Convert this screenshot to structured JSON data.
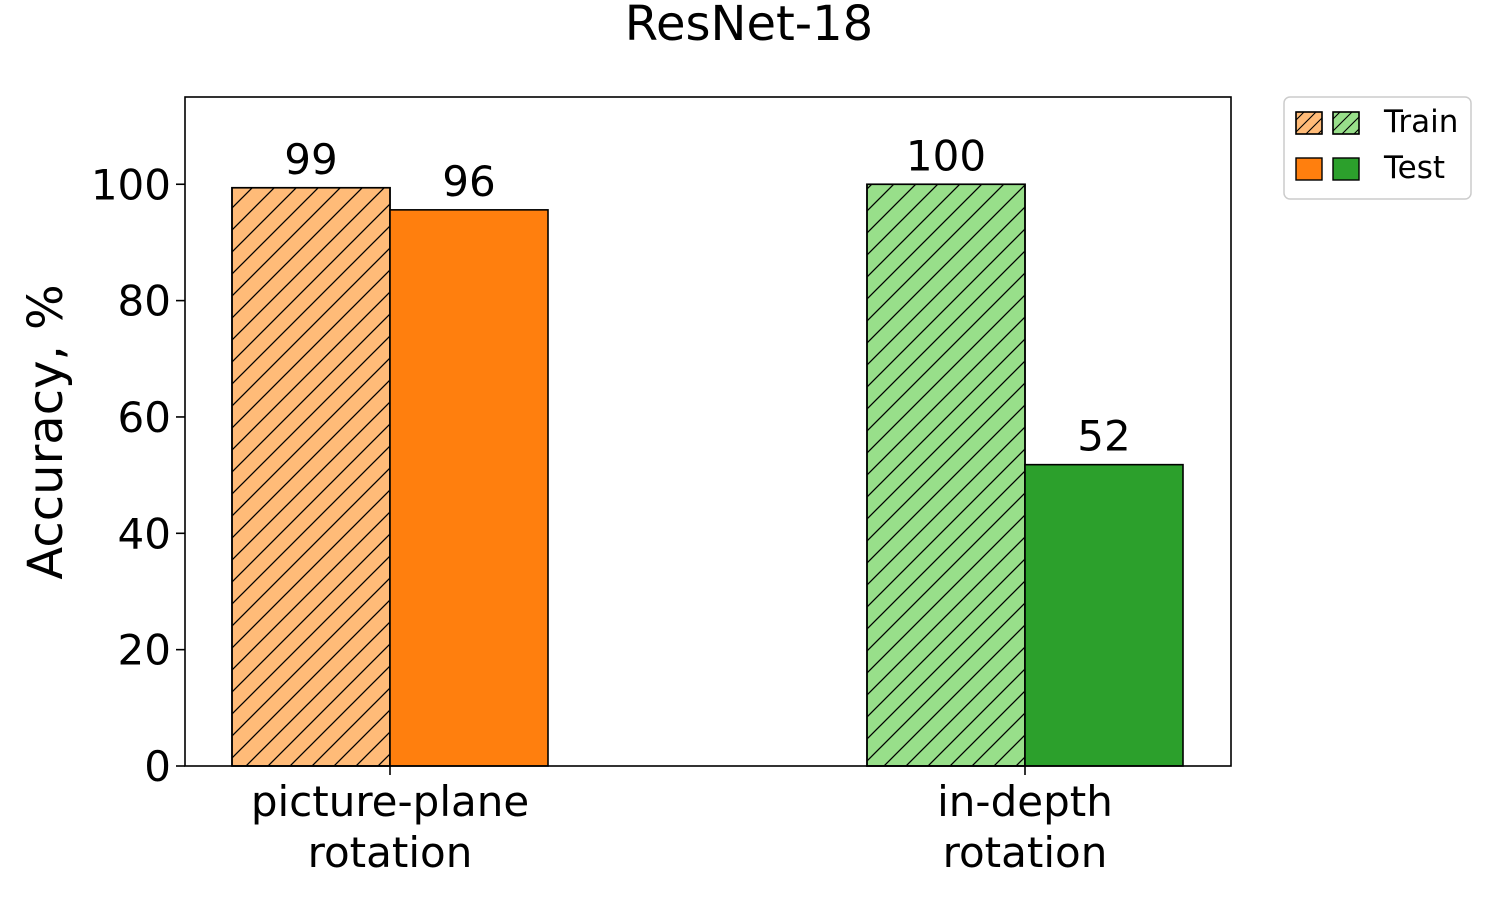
{
  "chart_data": {
    "type": "bar",
    "title": "ResNet-18",
    "xlabel": "",
    "ylabel": "Accuracy, %",
    "ylim": [
      0,
      115
    ],
    "yticks": [
      0,
      20,
      40,
      60,
      80,
      100
    ],
    "categories": [
      {
        "lines": [
          "picture-plane",
          "rotation"
        ]
      },
      {
        "lines": [
          "in-depth",
          "rotation"
        ]
      }
    ],
    "series": [
      {
        "name": "Train",
        "hatch": true,
        "values": [
          99.4,
          100
        ],
        "labels": [
          "99",
          "100"
        ]
      },
      {
        "name": "Test",
        "hatch": false,
        "values": [
          95.6,
          51.8
        ],
        "labels": [
          "96",
          "52"
        ]
      }
    ],
    "category_colors": [
      {
        "Train": "#ffbb78",
        "Test": "#ff7f0e"
      },
      {
        "Train": "#98df8a",
        "Test": "#2ca02c"
      }
    ],
    "legend": {
      "position": "outside-top-right",
      "entries": [
        {
          "label": "Train",
          "swatches": [
            "#ffbb78",
            "#98df8a"
          ],
          "hatch": true
        },
        {
          "label": "Test",
          "swatches": [
            "#ff7f0e",
            "#2ca02c"
          ],
          "hatch": false
        }
      ]
    },
    "grid": false
  }
}
